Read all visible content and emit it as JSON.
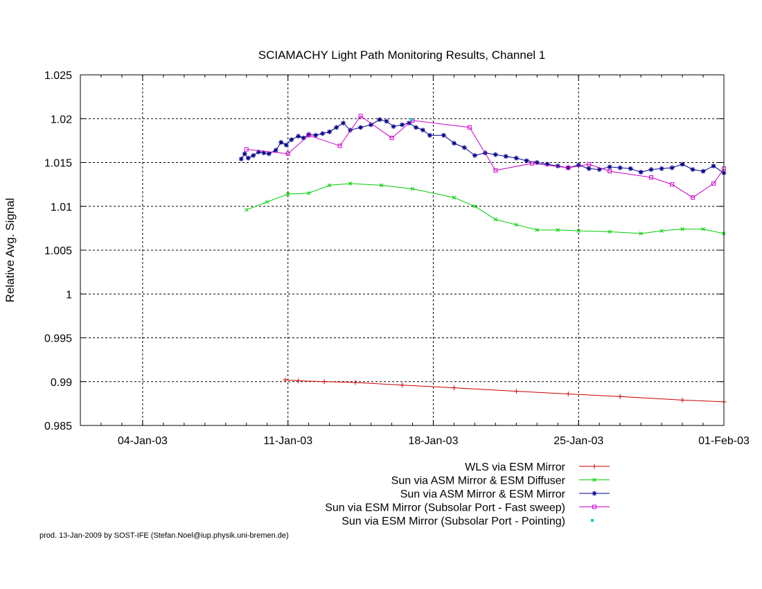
{
  "chart_data": {
    "type": "line",
    "title": "SCIAMACHY Light Path Monitoring Results, Channel 1",
    "xlabel": "",
    "ylabel": "Relative Avg. Signal",
    "xlim": [
      "2003-01-01",
      "2003-02-01"
    ],
    "ylim": [
      0.985,
      1.025
    ],
    "x_ticks": [
      {
        "date": "2003-01-04",
        "label": "04-Jan-03"
      },
      {
        "date": "2003-01-11",
        "label": "11-Jan-03"
      },
      {
        "date": "2003-01-18",
        "label": "18-Jan-03"
      },
      {
        "date": "2003-01-25",
        "label": "25-Jan-03"
      },
      {
        "date": "2003-02-01",
        "label": "01-Feb-03"
      }
    ],
    "y_ticks": [
      {
        "value": 0.985,
        "label": "0.985"
      },
      {
        "value": 0.99,
        "label": "0.99"
      },
      {
        "value": 0.995,
        "label": "0.995"
      },
      {
        "value": 1.0,
        "label": "1"
      },
      {
        "value": 1.005,
        "label": "1.005"
      },
      {
        "value": 1.01,
        "label": "1.01"
      },
      {
        "value": 1.015,
        "label": "1.015"
      },
      {
        "value": 1.02,
        "label": "1.02"
      },
      {
        "value": 1.025,
        "label": "1.025"
      }
    ],
    "grid": true,
    "legend_position": "bottom-right",
    "series": [
      {
        "name": "WLS via ESM Mirror",
        "color": "#cc0000",
        "marker": "plus",
        "points": [
          [
            "2003-01-10 21:00",
            0.9902
          ],
          [
            "2003-01-11 12:00",
            0.9901
          ],
          [
            "2003-01-12 18:00",
            0.99
          ],
          [
            "2003-01-14 06:00",
            0.9899
          ],
          [
            "2003-01-16 12:00",
            0.9896
          ],
          [
            "2003-01-19 00:00",
            0.9893
          ],
          [
            "2003-01-22 00:00",
            0.9889
          ],
          [
            "2003-01-24 12:00",
            0.9886
          ],
          [
            "2003-01-27 00:00",
            0.9883
          ],
          [
            "2003-01-30 00:00",
            0.9879
          ],
          [
            "2003-02-01 00:00",
            0.9877
          ]
        ]
      },
      {
        "name": "Sun via ASM Mirror & ESM Diffuser",
        "color": "#00cc00",
        "marker": "x",
        "points": [
          [
            "2003-01-09 00:00",
            1.0096
          ],
          [
            "2003-01-10 00:00",
            1.0105
          ],
          [
            "2003-01-11 00:00",
            1.0114
          ],
          [
            "2003-01-12 00:00",
            1.0115
          ],
          [
            "2003-01-13 00:00",
            1.0124
          ],
          [
            "2003-01-14 00:00",
            1.0126
          ],
          [
            "2003-01-15 12:00",
            1.0124
          ],
          [
            "2003-01-17 00:00",
            1.012
          ],
          [
            "2003-01-19 00:00",
            1.011
          ],
          [
            "2003-01-20 00:00",
            1.01
          ],
          [
            "2003-01-21 00:00",
            1.0085
          ],
          [
            "2003-01-22 00:00",
            1.0079
          ],
          [
            "2003-01-23 00:00",
            1.0073
          ],
          [
            "2003-01-24 00:00",
            1.0073
          ],
          [
            "2003-01-25 00:00",
            1.0072
          ],
          [
            "2003-01-26 12:00",
            1.0071
          ],
          [
            "2003-01-28 00:00",
            1.0069
          ],
          [
            "2003-01-29 00:00",
            1.0072
          ],
          [
            "2003-01-30 00:00",
            1.0074
          ],
          [
            "2003-01-31 00:00",
            1.0074
          ],
          [
            "2003-02-01 00:00",
            1.0069
          ]
        ]
      },
      {
        "name": "Sun via ASM Mirror & ESM Mirror",
        "color": "#00008b",
        "marker": "star",
        "points": [
          [
            "2003-01-08 18:00",
            1.0154
          ],
          [
            "2003-01-08 22:00",
            1.016
          ],
          [
            "2003-01-09 02:00",
            1.0155
          ],
          [
            "2003-01-09 08:00",
            1.0158
          ],
          [
            "2003-01-09 14:00",
            1.0162
          ],
          [
            "2003-01-09 20:00",
            1.0161
          ],
          [
            "2003-01-10 02:00",
            1.016
          ],
          [
            "2003-01-10 10:00",
            1.0164
          ],
          [
            "2003-01-10 16:00",
            1.0173
          ],
          [
            "2003-01-10 22:00",
            1.017
          ],
          [
            "2003-01-11 04:00",
            1.0176
          ],
          [
            "2003-01-11 12:00",
            1.018
          ],
          [
            "2003-01-11 18:00",
            1.0178
          ],
          [
            "2003-01-12 00:00",
            1.0182
          ],
          [
            "2003-01-12 08:00",
            1.0181
          ],
          [
            "2003-01-12 16:00",
            1.0183
          ],
          [
            "2003-01-13 00:00",
            1.0185
          ],
          [
            "2003-01-13 08:00",
            1.019
          ],
          [
            "2003-01-13 16:00",
            1.0195
          ],
          [
            "2003-01-14 00:00",
            1.0187
          ],
          [
            "2003-01-14 12:00",
            1.019
          ],
          [
            "2003-01-15 00:00",
            1.0193
          ],
          [
            "2003-01-15 10:00",
            1.0199
          ],
          [
            "2003-01-15 18:00",
            1.0197
          ],
          [
            "2003-01-16 02:00",
            1.0191
          ],
          [
            "2003-01-16 12:00",
            1.0193
          ],
          [
            "2003-01-16 20:00",
            1.0195
          ],
          [
            "2003-01-17 04:00",
            1.019
          ],
          [
            "2003-01-17 12:00",
            1.0187
          ],
          [
            "2003-01-17 20:00",
            1.0181
          ],
          [
            "2003-01-18 12:00",
            1.0181
          ],
          [
            "2003-01-19 00:00",
            1.0172
          ],
          [
            "2003-01-19 12:00",
            1.0167
          ],
          [
            "2003-01-20 00:00",
            1.0158
          ],
          [
            "2003-01-20 12:00",
            1.0161
          ],
          [
            "2003-01-21 00:00",
            1.0159
          ],
          [
            "2003-01-21 12:00",
            1.0157
          ],
          [
            "2003-01-22 00:00",
            1.0155
          ],
          [
            "2003-01-22 12:00",
            1.0152
          ],
          [
            "2003-01-23 00:00",
            1.015
          ],
          [
            "2003-01-23 12:00",
            1.0148
          ],
          [
            "2003-01-24 00:00",
            1.0146
          ],
          [
            "2003-01-24 12:00",
            1.0144
          ],
          [
            "2003-01-25 00:00",
            1.0147
          ],
          [
            "2003-01-25 12:00",
            1.0143
          ],
          [
            "2003-01-26 00:00",
            1.0142
          ],
          [
            "2003-01-26 12:00",
            1.0145
          ],
          [
            "2003-01-27 00:00",
            1.0144
          ],
          [
            "2003-01-27 12:00",
            1.0143
          ],
          [
            "2003-01-28 00:00",
            1.0139
          ],
          [
            "2003-01-28 12:00",
            1.0142
          ],
          [
            "2003-01-29 00:00",
            1.0143
          ],
          [
            "2003-01-29 12:00",
            1.0144
          ],
          [
            "2003-01-30 00:00",
            1.0148
          ],
          [
            "2003-01-30 12:00",
            1.0142
          ],
          [
            "2003-01-31 00:00",
            1.014
          ],
          [
            "2003-01-31 12:00",
            1.0146
          ],
          [
            "2003-02-01 00:00",
            1.0138
          ]
        ]
      },
      {
        "name": "Sun via ESM Mirror (Subsolar Port - Fast sweep)",
        "color": "#cc00cc",
        "marker": "square",
        "points": [
          [
            "2003-01-09 00:00",
            1.0165
          ],
          [
            "2003-01-11 00:00",
            1.016
          ],
          [
            "2003-01-12 00:00",
            1.0181
          ],
          [
            "2003-01-13 12:00",
            1.0169
          ],
          [
            "2003-01-14 12:00",
            1.0203
          ],
          [
            "2003-01-16 00:00",
            1.0178
          ],
          [
            "2003-01-17 00:00",
            1.0198
          ],
          [
            "2003-01-19 18:00",
            1.019
          ],
          [
            "2003-01-21 00:00",
            1.0141
          ],
          [
            "2003-01-22 18:00",
            1.0149
          ],
          [
            "2003-01-24 12:00",
            1.0144
          ],
          [
            "2003-01-25 12:00",
            1.0148
          ],
          [
            "2003-01-26 12:00",
            1.014
          ],
          [
            "2003-01-28 12:00",
            1.0133
          ],
          [
            "2003-01-29 12:00",
            1.0125
          ],
          [
            "2003-01-30 12:00",
            1.011
          ],
          [
            "2003-01-31 12:00",
            1.0126
          ],
          [
            "2003-02-01 00:00",
            1.0143
          ]
        ]
      },
      {
        "name": "Sun via ESM Mirror (Subsolar Port - Pointing)",
        "color": "#00cccc",
        "marker": "dot",
        "points": [
          [
            "2003-01-16 23:00",
            1.0199
          ]
        ]
      }
    ]
  },
  "footer": "prod. 13-Jan-2009 by SOST-IFE (Stefan.Noel@iup.physik.uni-bremen.de)"
}
